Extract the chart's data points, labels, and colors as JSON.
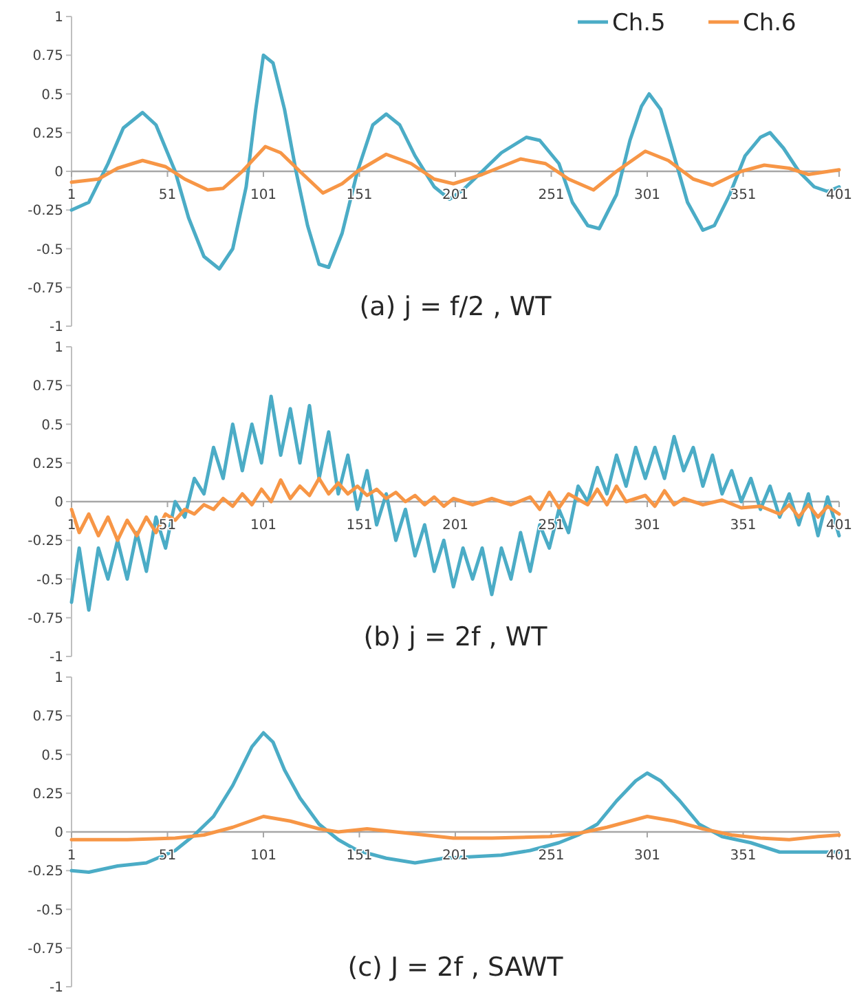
{
  "chart_data": [
    {
      "type": "line",
      "title": "(a) j = f/2 , WT",
      "xlim": [
        1,
        401
      ],
      "xticks": [
        1,
        51,
        101,
        151,
        201,
        251,
        301,
        351,
        401
      ],
      "ylim": [
        -1,
        1
      ],
      "yticks": [
        -1,
        -0.75,
        -0.5,
        -0.25,
        0,
        0.25,
        0.5,
        0.75,
        1
      ],
      "grid": false,
      "legend": "top right",
      "line_style": "solid",
      "marker": "none",
      "series": [
        {
          "name": "Ch.5",
          "color": "#4bacc6",
          "x": [
            1,
            10,
            20,
            28,
            38,
            45,
            55,
            62,
            70,
            78,
            85,
            92,
            97,
            101,
            106,
            112,
            118,
            124,
            130,
            135,
            142,
            150,
            158,
            165,
            172,
            180,
            190,
            198,
            205,
            215,
            225,
            238,
            245,
            255,
            262,
            270,
            276,
            285,
            292,
            298,
            302,
            308,
            315,
            322,
            330,
            336,
            344,
            352,
            360,
            365,
            372,
            380,
            388,
            395,
            401
          ],
          "values": [
            -0.25,
            -0.2,
            0.05,
            0.28,
            0.38,
            0.3,
            0.0,
            -0.3,
            -0.55,
            -0.63,
            -0.5,
            -0.1,
            0.4,
            0.75,
            0.7,
            0.4,
            0.0,
            -0.35,
            -0.6,
            -0.62,
            -0.4,
            0.0,
            0.3,
            0.37,
            0.3,
            0.1,
            -0.1,
            -0.18,
            -0.12,
            0.0,
            0.12,
            0.22,
            0.2,
            0.05,
            -0.2,
            -0.35,
            -0.37,
            -0.15,
            0.2,
            0.42,
            0.5,
            0.4,
            0.1,
            -0.2,
            -0.38,
            -0.35,
            -0.15,
            0.1,
            0.22,
            0.25,
            0.15,
            0.0,
            -0.1,
            -0.13,
            -0.1
          ]
        },
        {
          "name": "Ch.6",
          "color": "#f79646",
          "x": [
            1,
            15,
            25,
            38,
            50,
            60,
            72,
            80,
            90,
            102,
            110,
            120,
            132,
            142,
            150,
            165,
            178,
            190,
            200,
            215,
            235,
            248,
            260,
            273,
            285,
            300,
            312,
            325,
            335,
            350,
            362,
            375,
            385,
            401
          ],
          "values": [
            -0.07,
            -0.05,
            0.02,
            0.07,
            0.03,
            -0.05,
            -0.12,
            -0.11,
            0.0,
            0.16,
            0.12,
            0.0,
            -0.14,
            -0.08,
            0.0,
            0.11,
            0.05,
            -0.05,
            -0.08,
            -0.02,
            0.08,
            0.05,
            -0.05,
            -0.12,
            0.0,
            0.13,
            0.07,
            -0.05,
            -0.09,
            0.0,
            0.04,
            0.02,
            -0.02,
            0.01
          ]
        }
      ]
    },
    {
      "type": "line",
      "title": "(b) j = 2f , WT",
      "xlim": [
        1,
        401
      ],
      "xticks": [
        1,
        51,
        101,
        151,
        201,
        251,
        301,
        351,
        401
      ],
      "ylim": [
        -1,
        1
      ],
      "yticks": [
        -1,
        -0.75,
        -0.5,
        -0.25,
        0,
        0.25,
        0.5,
        0.75,
        1
      ],
      "grid": false,
      "line_style": "solid",
      "marker": "none",
      "series": [
        {
          "color": "#4bacc6",
          "x": [
            1,
            5,
            10,
            15,
            20,
            25,
            30,
            35,
            40,
            45,
            50,
            55,
            60,
            65,
            70,
            75,
            80,
            85,
            90,
            95,
            100,
            105,
            110,
            115,
            120,
            125,
            130,
            135,
            140,
            145,
            150,
            155,
            160,
            165,
            170,
            175,
            180,
            185,
            190,
            195,
            200,
            205,
            210,
            215,
            220,
            225,
            230,
            235,
            240,
            245,
            250,
            255,
            260,
            265,
            270,
            275,
            280,
            285,
            290,
            295,
            300,
            305,
            310,
            315,
            320,
            325,
            330,
            335,
            340,
            345,
            350,
            355,
            360,
            365,
            370,
            375,
            380,
            385,
            390,
            395,
            401
          ],
          "values": [
            -0.65,
            -0.3,
            -0.7,
            -0.3,
            -0.5,
            -0.25,
            -0.5,
            -0.2,
            -0.45,
            -0.1,
            -0.3,
            0.0,
            -0.1,
            0.15,
            0.05,
            0.35,
            0.15,
            0.5,
            0.2,
            0.5,
            0.25,
            0.68,
            0.3,
            0.6,
            0.25,
            0.62,
            0.15,
            0.45,
            0.05,
            0.3,
            -0.05,
            0.2,
            -0.15,
            0.05,
            -0.25,
            -0.05,
            -0.35,
            -0.15,
            -0.45,
            -0.25,
            -0.55,
            -0.3,
            -0.5,
            -0.3,
            -0.6,
            -0.3,
            -0.5,
            -0.2,
            -0.45,
            -0.15,
            -0.3,
            -0.05,
            -0.2,
            0.1,
            0.0,
            0.22,
            0.05,
            0.3,
            0.1,
            0.35,
            0.15,
            0.35,
            0.15,
            0.42,
            0.2,
            0.35,
            0.1,
            0.3,
            0.05,
            0.2,
            0.0,
            0.15,
            -0.05,
            0.1,
            -0.1,
            0.05,
            -0.15,
            0.05,
            -0.22,
            0.03,
            -0.22
          ]
        },
        {
          "color": "#f79646",
          "x": [
            1,
            5,
            10,
            15,
            20,
            25,
            30,
            35,
            40,
            45,
            50,
            55,
            60,
            65,
            70,
            75,
            80,
            85,
            90,
            95,
            100,
            105,
            110,
            115,
            120,
            125,
            130,
            135,
            140,
            145,
            150,
            155,
            160,
            165,
            170,
            175,
            180,
            185,
            190,
            195,
            200,
            210,
            220,
            230,
            240,
            245,
            250,
            255,
            260,
            270,
            275,
            280,
            285,
            290,
            300,
            305,
            310,
            315,
            320,
            330,
            340,
            350,
            360,
            370,
            375,
            380,
            385,
            390,
            395,
            401
          ],
          "values": [
            -0.05,
            -0.2,
            -0.08,
            -0.22,
            -0.1,
            -0.25,
            -0.12,
            -0.22,
            -0.1,
            -0.2,
            -0.08,
            -0.12,
            -0.05,
            -0.08,
            -0.02,
            -0.05,
            0.02,
            -0.03,
            0.05,
            -0.02,
            0.08,
            0.0,
            0.14,
            0.02,
            0.1,
            0.04,
            0.15,
            0.05,
            0.12,
            0.05,
            0.1,
            0.04,
            0.08,
            0.02,
            0.06,
            0.0,
            0.04,
            -0.02,
            0.03,
            -0.03,
            0.02,
            -0.02,
            0.02,
            -0.02,
            0.03,
            -0.05,
            0.06,
            -0.04,
            0.05,
            -0.02,
            0.08,
            -0.02,
            0.1,
            0.0,
            0.04,
            -0.03,
            0.07,
            -0.02,
            0.02,
            -0.02,
            0.01,
            -0.04,
            -0.03,
            -0.08,
            -0.02,
            -0.1,
            -0.02,
            -0.1,
            -0.03,
            -0.08
          ]
        }
      ]
    },
    {
      "type": "line",
      "title": "(c) J = 2f , SAWT",
      "xlim": [
        1,
        401
      ],
      "xticks": [
        1,
        51,
        101,
        151,
        201,
        251,
        301,
        351,
        401
      ],
      "ylim": [
        -1,
        1
      ],
      "yticks": [
        -1,
        -0.75,
        -0.5,
        -0.25,
        0,
        0.25,
        0.5,
        0.75,
        1
      ],
      "grid": false,
      "line_style": "solid",
      "marker": "none",
      "series": [
        {
          "color": "#4bacc6",
          "x": [
            1,
            10,
            25,
            40,
            55,
            65,
            75,
            85,
            95,
            101,
            106,
            112,
            120,
            130,
            140,
            150,
            165,
            180,
            195,
            210,
            225,
            240,
            255,
            265,
            275,
            285,
            295,
            301,
            308,
            318,
            328,
            340,
            355,
            370,
            385,
            401
          ],
          "values": [
            -0.25,
            -0.26,
            -0.22,
            -0.2,
            -0.12,
            -0.02,
            0.1,
            0.3,
            0.55,
            0.64,
            0.58,
            0.4,
            0.22,
            0.05,
            -0.05,
            -0.12,
            -0.17,
            -0.2,
            -0.17,
            -0.16,
            -0.15,
            -0.12,
            -0.07,
            -0.02,
            0.05,
            0.2,
            0.33,
            0.38,
            0.33,
            0.2,
            0.05,
            -0.03,
            -0.07,
            -0.13,
            -0.13,
            -0.13
          ]
        },
        {
          "color": "#f79646",
          "x": [
            1,
            30,
            55,
            70,
            85,
            101,
            115,
            130,
            140,
            155,
            170,
            185,
            200,
            220,
            250,
            265,
            280,
            301,
            315,
            330,
            345,
            360,
            375,
            390,
            401
          ],
          "values": [
            -0.05,
            -0.05,
            -0.04,
            -0.02,
            0.03,
            0.1,
            0.07,
            0.02,
            0.0,
            0.02,
            0.0,
            -0.02,
            -0.04,
            -0.04,
            -0.03,
            -0.01,
            0.03,
            0.1,
            0.07,
            0.02,
            -0.02,
            -0.04,
            -0.05,
            -0.03,
            -0.02
          ]
        }
      ]
    }
  ]
}
